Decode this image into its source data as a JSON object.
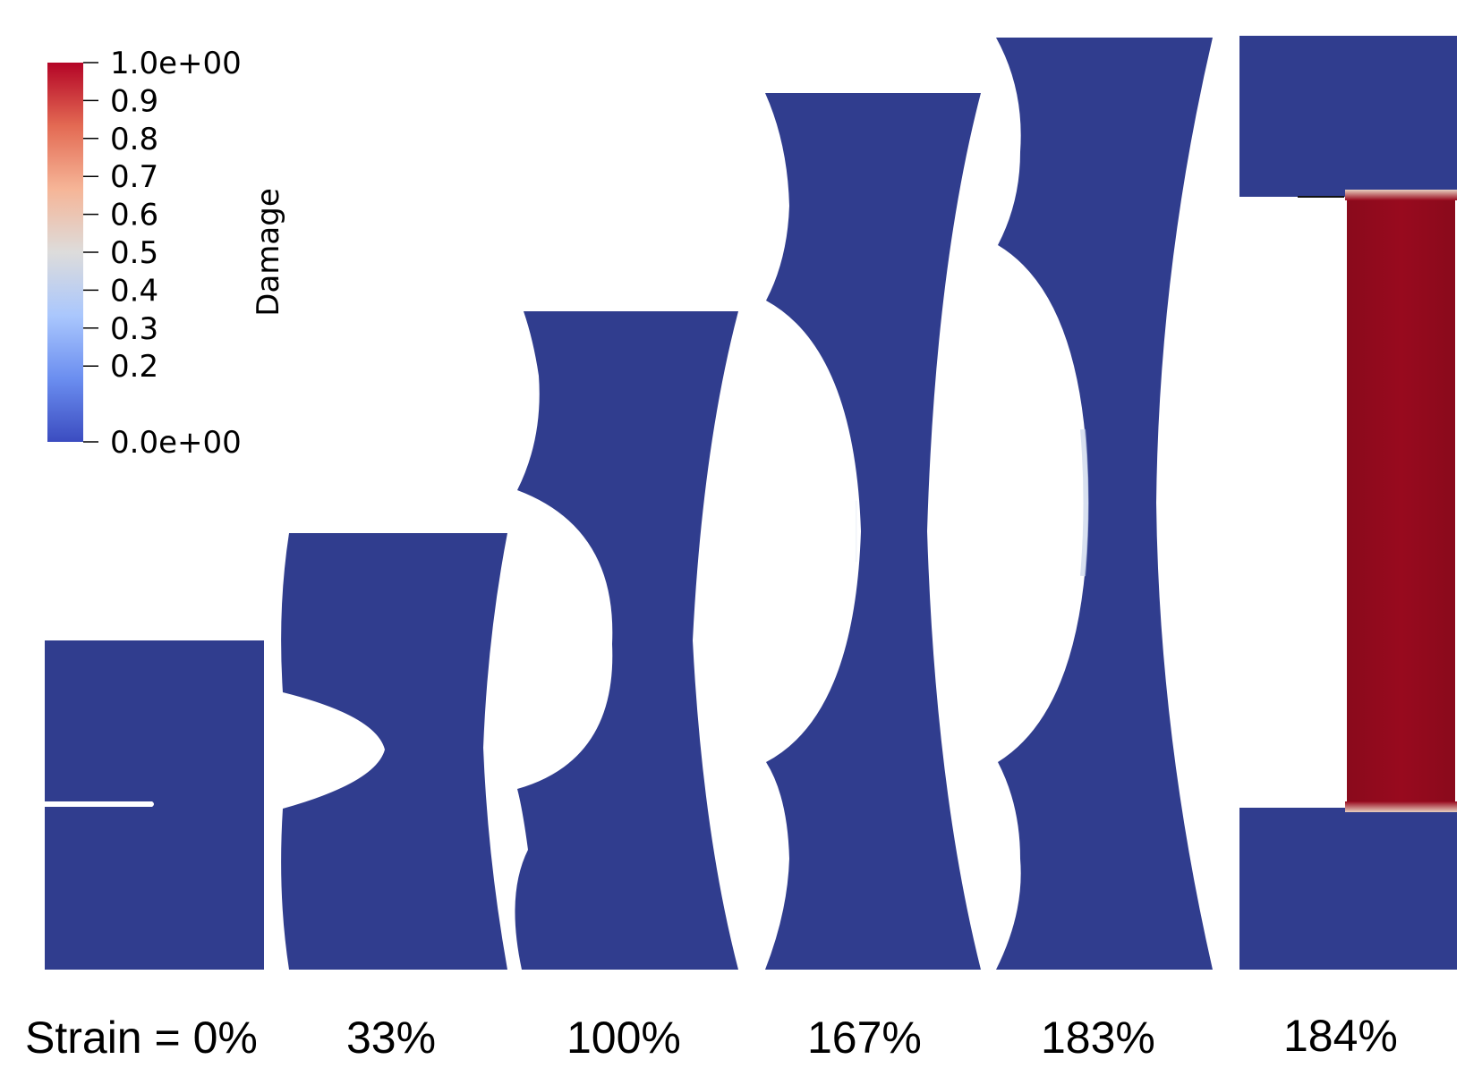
{
  "colorbar": {
    "title": "Damage",
    "tick_labels": [
      "1.0e+00",
      "0.9",
      "0.8",
      "0.7",
      "0.6",
      "0.5",
      "0.4",
      "0.3",
      "0.2",
      "0.0e+00"
    ],
    "tick_values": [
      1.0,
      0.9,
      0.8,
      0.7,
      0.6,
      0.5,
      0.4,
      0.3,
      0.2,
      0.0
    ],
    "range": [
      0.0,
      1.0
    ],
    "colormap_stops": [
      "#3b4cc0",
      "#6b8ef0",
      "#aac7fd",
      "#dddcdb",
      "#f6b597",
      "#e36a53",
      "#b40426"
    ]
  },
  "colors": {
    "undamaged": "#303d8e",
    "fully_damaged": "#980a1e",
    "crack": "#ffffff"
  },
  "strain_labels": [
    "Strain = 0%",
    "33%",
    "100%",
    "167%",
    "183%",
    "184%"
  ],
  "specimens": [
    {
      "strain_percent": 0,
      "state": "initial notch"
    },
    {
      "strain_percent": 33,
      "state": "notch opening"
    },
    {
      "strain_percent": 100,
      "state": "notch opening"
    },
    {
      "strain_percent": 167,
      "state": "notch opening, damage onset"
    },
    {
      "strain_percent": 183,
      "state": "notch opening, damage onset"
    },
    {
      "strain_percent": 184,
      "state": "fully damaged ligament"
    }
  ]
}
